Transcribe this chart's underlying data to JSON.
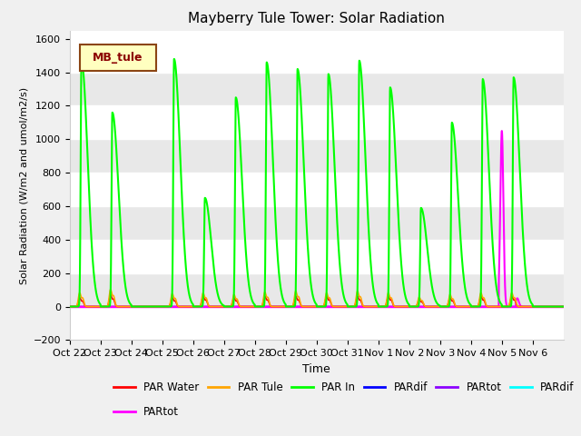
{
  "title": "Mayberry Tule Tower: Solar Radiation",
  "ylabel": "Solar Radiation (W/m2 and umol/m2/s)",
  "xlabel": "Time",
  "ylim": [
    -200,
    1650
  ],
  "yticks": [
    -200,
    0,
    200,
    400,
    600,
    800,
    1000,
    1200,
    1400,
    1600
  ],
  "background_color": "#f0f0f0",
  "plot_bg_color": "#ffffff",
  "legend_label": "MB_tule",
  "legend_facecolor": "#ffffc0",
  "legend_edgecolor": "#8b4513",
  "series_colors": {
    "PAR Water": "#ff0000",
    "PAR Tule": "#ffa500",
    "PAR In": "#00ff00",
    "PARdif1": "#0000ff",
    "PARtot1": "#8b00ff",
    "PARdif2": "#00ffff",
    "PARtot2": "#ff00ff"
  },
  "x_tick_labels": [
    "Oct 22",
    "Oct 23",
    "Oct 24",
    "Oct 25",
    "Oct 26",
    "Oct 27",
    "Oct 28",
    "Oct 29",
    "Oct 30",
    "Oct 31",
    "Nov 1",
    "Nov 2",
    "Nov 3",
    "Nov 4",
    "Nov 5",
    "Nov 6"
  ],
  "day_peaks_in": [
    1470,
    1160,
    0,
    1480,
    650,
    1250,
    1460,
    1420,
    1390,
    1470,
    1310,
    590,
    1100,
    1360,
    1370,
    0
  ],
  "day_peaks_tule": [
    80,
    100,
    0,
    75,
    80,
    70,
    85,
    90,
    80,
    90,
    80,
    55,
    70,
    80,
    80,
    0
  ],
  "day_peaks_water": [
    60,
    80,
    0,
    60,
    70,
    60,
    70,
    70,
    70,
    70,
    70,
    50,
    60,
    70,
    70,
    0
  ]
}
